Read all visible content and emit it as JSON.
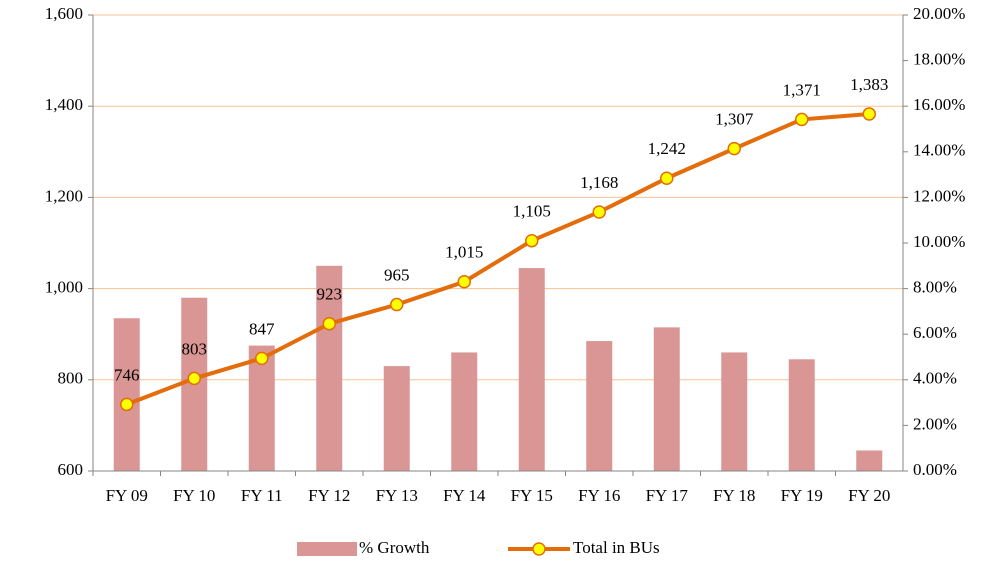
{
  "chart_data": {
    "type": "bar_line",
    "categories": [
      "FY 09",
      "FY 10",
      "FY 11",
      "FY 12",
      "FY 13",
      "FY 14",
      "FY 15",
      "FY 16",
      "FY 17",
      "FY 18",
      "FY 19",
      "FY 20"
    ],
    "series": [
      {
        "name": "% Growth",
        "type": "bar",
        "axis": "y2",
        "color": "#d99694",
        "values": [
          6.7,
          7.6,
          5.5,
          9.0,
          4.6,
          5.2,
          8.9,
          5.7,
          6.3,
          5.2,
          4.9,
          0.9
        ]
      },
      {
        "name": "Total in BUs",
        "type": "line",
        "axis": "y",
        "color": "#e46c0a",
        "marker_color": "#ffff00",
        "values": [
          746,
          803,
          847,
          923,
          965,
          1015,
          1105,
          1168,
          1242,
          1307,
          1371,
          1383
        ],
        "value_labels": [
          "746",
          "803",
          "847",
          "923",
          "965",
          "1,015",
          "1,105",
          "1,168",
          "1,242",
          "1,307",
          "1,371",
          "1,383"
        ]
      }
    ],
    "ylim": [
      600,
      1600
    ],
    "yticks": [
      600,
      800,
      {
        "value": 1000,
        "label": "1,000"
      },
      {
        "value": 1200,
        "label": "1,200"
      },
      {
        "value": 1400,
        "label": "1,400"
      },
      {
        "value": 1600,
        "label": "1,600"
      }
    ],
    "y2lim": [
      0,
      20
    ],
    "y2ticks": [
      {
        "value": 0,
        "label": "0.00%"
      },
      {
        "value": 2,
        "label": "2.00%"
      },
      {
        "value": 4,
        "label": "4.00%"
      },
      {
        "value": 6,
        "label": "6.00%"
      },
      {
        "value": 8,
        "label": "8.00%"
      },
      {
        "value": 10,
        "label": "10.00%"
      },
      {
        "value": 12,
        "label": "12.00%"
      },
      {
        "value": 14,
        "label": "14.00%"
      },
      {
        "value": 16,
        "label": "16.00%"
      },
      {
        "value": 18,
        "label": "18.00%"
      },
      {
        "value": 20,
        "label": "20.00%"
      }
    ],
    "grid": true,
    "grid_color": "#fac090",
    "legend": "bottom"
  }
}
